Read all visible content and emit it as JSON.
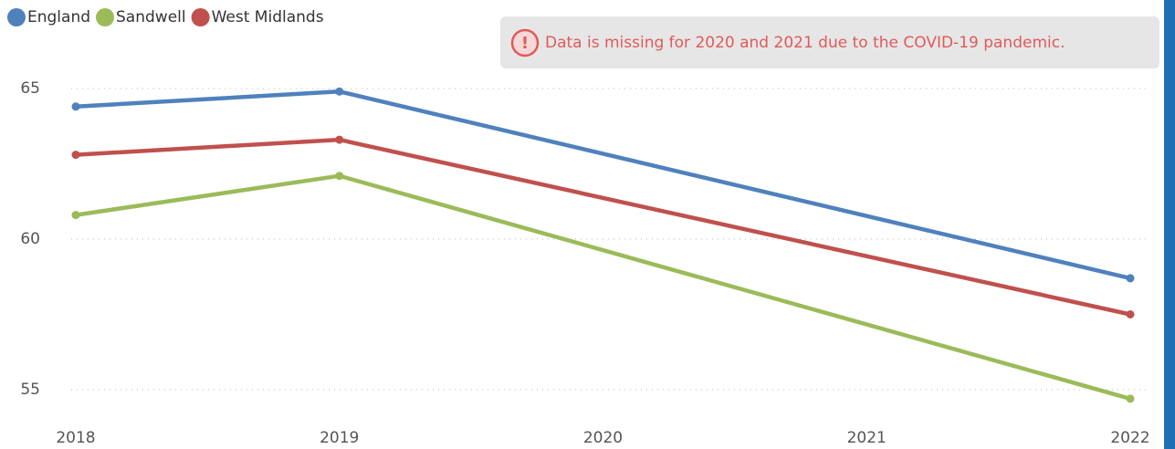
{
  "chart_data": {
    "type": "line",
    "annotation": "Data is missing for 2020 and 2021 due to the COVID-19 pandemic.",
    "x": [
      2018,
      2019,
      2022
    ],
    "xlim": [
      2018,
      2022
    ],
    "xticks": [
      2018,
      2019,
      2020,
      2021,
      2022
    ],
    "ylim": [
      54.5,
      65.6
    ],
    "yticks": [
      55,
      60,
      65
    ],
    "grid": true,
    "series": [
      {
        "name": "England",
        "color": "#4f81bd",
        "values": [
          64.4,
          64.9,
          58.7
        ]
      },
      {
        "name": "Sandwell",
        "color": "#9bbb59",
        "values": [
          60.8,
          62.1,
          54.7
        ]
      },
      {
        "name": "West Midlands",
        "color": "#c0504d",
        "values": [
          62.8,
          63.3,
          57.5
        ]
      }
    ]
  }
}
